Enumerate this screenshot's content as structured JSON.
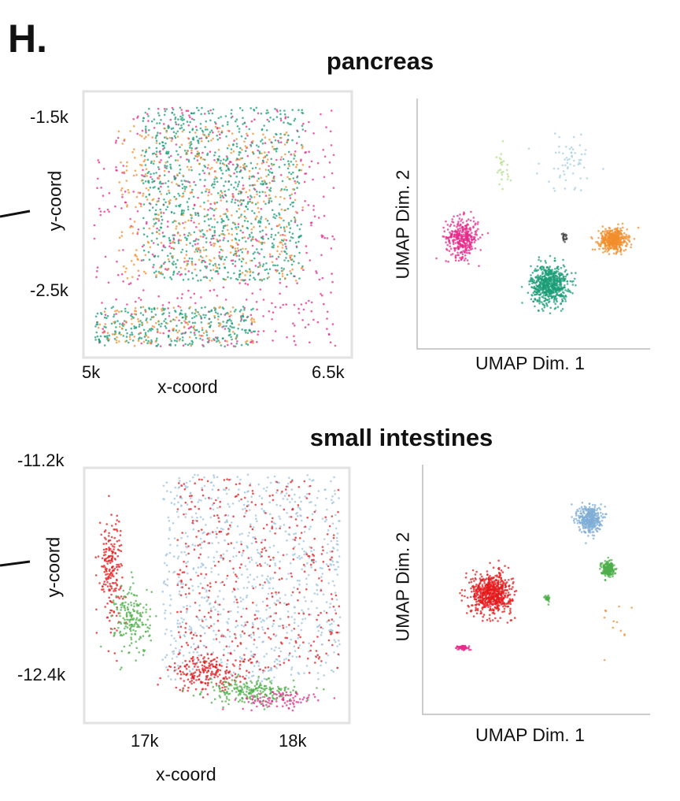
{
  "panel_label": "H.",
  "chart_data": [
    {
      "type": "scatter",
      "title": "pancreas",
      "xlabel": "x-coord",
      "ylabel": "y-coord",
      "xticks": [
        "5k",
        "6.5k"
      ],
      "yticks": [
        "-1.5k",
        "-2.5k"
      ],
      "xlim": [
        5.0,
        6.53
      ],
      "ylim": [
        -2.83,
        -1.42
      ],
      "units": "k",
      "grid": false,
      "framed": true,
      "clusters": [
        {
          "color": "#e7298a",
          "shape": "uniform",
          "x": [
            5.0,
            6.5
          ],
          "y": [
            -2.83,
            -1.45
          ],
          "n": 520
        },
        {
          "color": "#1b9e77",
          "shape": "uniform",
          "x": [
            5.3,
            6.3
          ],
          "y": [
            -2.45,
            -1.45
          ],
          "n": 900
        },
        {
          "color": "#f28e2b",
          "shape": "uniform",
          "x": [
            5.15,
            6.3
          ],
          "y": [
            -2.45,
            -1.55
          ],
          "n": 420
        },
        {
          "color": "#1b9e77",
          "shape": "uniform",
          "x": [
            5.0,
            6.0
          ],
          "y": [
            -2.83,
            -2.6
          ],
          "n": 300
        },
        {
          "color": "#f28e2b",
          "shape": "uniform",
          "x": [
            5.0,
            6.0
          ],
          "y": [
            -2.83,
            -2.6
          ],
          "n": 120
        }
      ]
    },
    {
      "type": "scatter",
      "xlabel": "UMAP Dim. 1",
      "ylabel": "UMAP Dim. 2",
      "xlim": [
        0,
        10
      ],
      "ylim": [
        0,
        10
      ],
      "grid": false,
      "clusters": [
        {
          "color": "#e7298a",
          "shape": "gaussian",
          "x": [
            1.8,
            0.7
          ],
          "y": [
            4.4,
            0.8
          ],
          "n": 350
        },
        {
          "color": "#1b9e77",
          "shape": "gaussian",
          "x": [
            5.6,
            0.8
          ],
          "y": [
            2.5,
            0.8
          ],
          "n": 650
        },
        {
          "color": "#f28e2b",
          "shape": "gaussian",
          "x": [
            8.4,
            0.6
          ],
          "y": [
            4.3,
            0.45
          ],
          "n": 450
        },
        {
          "color": "#444444",
          "shape": "gaussian",
          "x": [
            6.25,
            0.1
          ],
          "y": [
            4.4,
            0.15
          ],
          "n": 20
        },
        {
          "color": "#a6cee3",
          "shape": "gaussian",
          "x": [
            6.5,
            1.3
          ],
          "y": [
            7.5,
            1.2
          ],
          "n": 60
        },
        {
          "color": "#b2df8a",
          "shape": "gaussian",
          "x": [
            3.5,
            0.5
          ],
          "y": [
            7.0,
            1.0
          ],
          "n": 25
        }
      ]
    },
    {
      "type": "scatter",
      "title": "small intestines",
      "xlabel": "x-coord",
      "ylabel": "y-coord",
      "xticks": [
        "17k",
        "18k"
      ],
      "yticks": [
        "-11.2k",
        "-12.4k"
      ],
      "xlim": [
        16.64,
        18.3
      ],
      "ylim": [
        -12.62,
        -11.26
      ],
      "units": "k",
      "grid": false,
      "framed": true,
      "clusters": [
        {
          "color": "#9ec1de",
          "shape": "uniform",
          "x": [
            17.1,
            18.3
          ],
          "y": [
            -12.45,
            -11.28
          ],
          "n": 800
        },
        {
          "color": "#e41a1c",
          "shape": "uniform",
          "x": [
            17.2,
            18.3
          ],
          "y": [
            -12.4,
            -11.3
          ],
          "n": 420
        },
        {
          "color": "#e41a1c",
          "shape": "gaussian",
          "x": [
            16.75,
            0.08
          ],
          "y": [
            -11.8,
            0.3
          ],
          "n": 200
        },
        {
          "color": "#4daf4a",
          "shape": "gaussian",
          "x": [
            16.9,
            0.12
          ],
          "y": [
            -12.1,
            0.2
          ],
          "n": 180
        },
        {
          "color": "#e41a1c",
          "shape": "gaussian",
          "x": [
            17.4,
            0.25
          ],
          "y": [
            -12.4,
            0.1
          ],
          "n": 200
        },
        {
          "color": "#4daf4a",
          "shape": "gaussian",
          "x": [
            17.7,
            0.3
          ],
          "y": [
            -12.5,
            0.07
          ],
          "n": 220
        },
        {
          "color": "#e7298a",
          "shape": "gaussian",
          "x": [
            17.9,
            0.3
          ],
          "y": [
            -12.55,
            0.05
          ],
          "n": 90
        }
      ]
    },
    {
      "type": "scatter",
      "xlabel": "UMAP Dim. 1",
      "ylabel": "UMAP Dim. 2",
      "xlim": [
        0,
        10
      ],
      "ylim": [
        0,
        10
      ],
      "grid": false,
      "clusters": [
        {
          "color": "#e41a1c",
          "shape": "gaussian",
          "x": [
            2.9,
            0.9
          ],
          "y": [
            4.8,
            0.8
          ],
          "n": 650
        },
        {
          "color": "#7fadd6",
          "shape": "gaussian",
          "x": [
            7.3,
            0.5
          ],
          "y": [
            7.8,
            0.55
          ],
          "n": 400
        },
        {
          "color": "#4daf4a",
          "shape": "gaussian",
          "x": [
            8.1,
            0.3
          ],
          "y": [
            5.8,
            0.3
          ],
          "n": 200
        },
        {
          "color": "#e7298a",
          "shape": "gaussian",
          "x": [
            1.6,
            0.35
          ],
          "y": [
            2.6,
            0.1
          ],
          "n": 60
        },
        {
          "color": "#4daf4a",
          "shape": "gaussian",
          "x": [
            5.4,
            0.1
          ],
          "y": [
            4.6,
            0.15
          ],
          "n": 25
        },
        {
          "color": "#f28e2b",
          "shape": "gaussian",
          "x": [
            8.5,
            1.0
          ],
          "y": [
            3.5,
            1.0
          ],
          "n": 12
        }
      ]
    }
  ]
}
